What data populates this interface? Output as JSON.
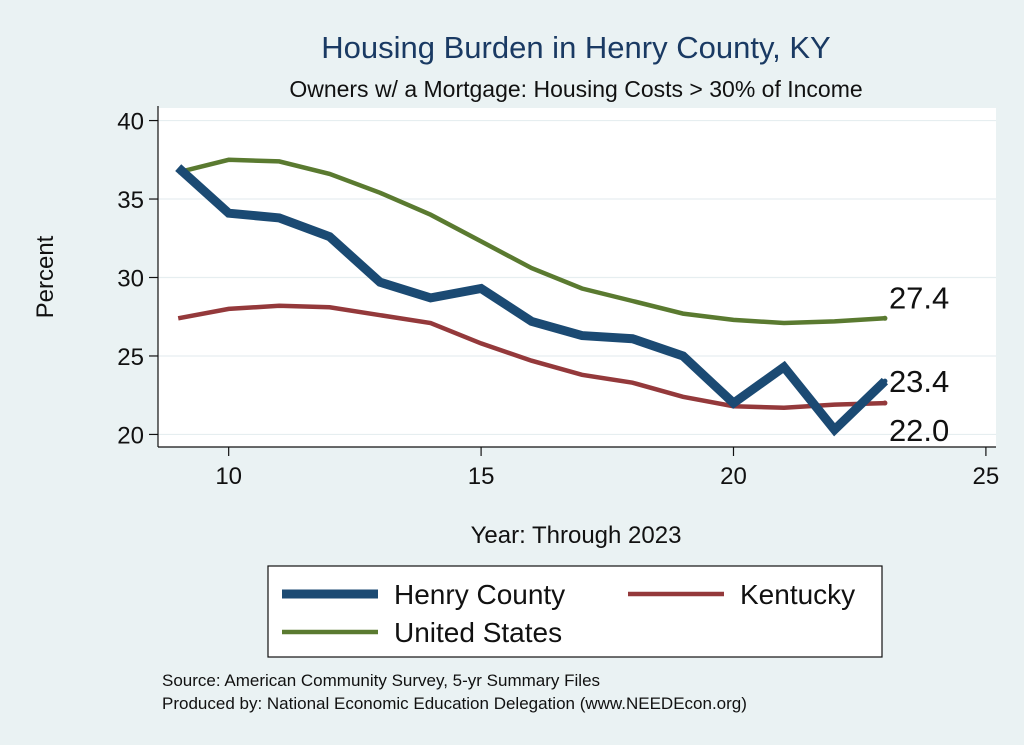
{
  "chart_data": {
    "type": "line",
    "title": "Housing Burden in Henry County, KY",
    "subtitle": "Owners w/ a Mortgage: Housing Costs > 30% of Income",
    "xlabel": "Year: Through 2023",
    "ylabel": "Percent",
    "xlim": [
      8.6,
      25.2
    ],
    "ylim": [
      19.2,
      40.8
    ],
    "xticks": [
      10,
      15,
      20,
      25
    ],
    "yticks": [
      20,
      25,
      30,
      35,
      40
    ],
    "grid": true,
    "legend_position": "bottom",
    "x": [
      9,
      10,
      11,
      12,
      13,
      14,
      15,
      16,
      17,
      18,
      19,
      20,
      21,
      22,
      23
    ],
    "series": [
      {
        "name": "Henry County",
        "color": "#1b4a73",
        "values": [
          37.0,
          34.1,
          33.8,
          32.6,
          29.7,
          28.7,
          29.3,
          27.2,
          26.3,
          26.1,
          25.0,
          22.0,
          24.3,
          20.3,
          23.4
        ],
        "end_label": "23.4"
      },
      {
        "name": "Kentucky",
        "color": "#94393b",
        "values": [
          27.4,
          28.0,
          28.2,
          28.1,
          27.6,
          27.1,
          25.8,
          24.7,
          23.8,
          23.3,
          22.4,
          21.8,
          21.7,
          21.9,
          22.0
        ],
        "end_label": "22.0"
      },
      {
        "name": "United States",
        "color": "#5a7a30",
        "values": [
          36.7,
          37.5,
          37.4,
          36.6,
          35.4,
          34.0,
          32.3,
          30.6,
          29.3,
          28.5,
          27.7,
          27.3,
          27.1,
          27.2,
          27.4
        ],
        "end_label": "27.4"
      }
    ]
  },
  "source_line": "Source: American Community Survey, 5-yr Summary Files",
  "produced_line": "Produced by: National Economic Education Delegation (www.NEEDEcon.org)"
}
